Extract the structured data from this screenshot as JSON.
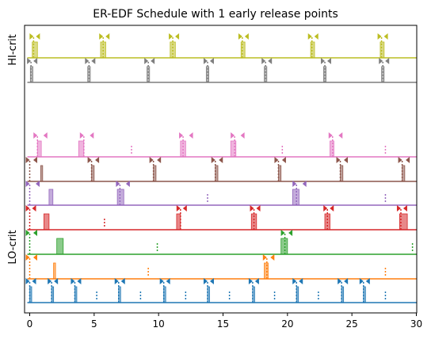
{
  "chart_data": {
    "type": "schedule-timeline",
    "title": "ER-EDF Schedule with 1 early release points",
    "xlim": [
      0,
      30
    ],
    "xticks": [
      "0",
      "5",
      "10",
      "15",
      "20",
      "25",
      "30"
    ],
    "group_labels": [
      "HI-crit",
      "LO-crit"
    ],
    "grid": false,
    "legend": "none",
    "tasks": [
      {
        "group": "HI-crit",
        "color": "#bcbd22",
        "releases": [
          0.3,
          5.7,
          11.1,
          16.5,
          21.9,
          27.3
        ],
        "jobs": [
          [
            0.2,
            0.6
          ],
          [
            5.5,
            5.9
          ],
          [
            10.9,
            11.3
          ],
          [
            16.4,
            16.7
          ],
          [
            21.8,
            22.1
          ],
          [
            27.2,
            27.5
          ]
        ]
      },
      {
        "group": "HI-crit",
        "color": "#7f7f7f",
        "releases": [
          0.1,
          4.6,
          9.2,
          13.8,
          18.3,
          22.9,
          27.4
        ],
        "jobs": [
          [
            0.05,
            0.25
          ],
          [
            4.5,
            4.7
          ],
          [
            9.1,
            9.3
          ],
          [
            13.7,
            13.9
          ],
          [
            18.2,
            18.4
          ],
          [
            22.8,
            23.0
          ],
          [
            27.3,
            27.5
          ]
        ]
      },
      {
        "group": "LO-crit",
        "color": "#e377c2",
        "releases": [
          0.6,
          4.2,
          11.9,
          15.9,
          23.5
        ],
        "unreleased": [
          7.9,
          19.6,
          27.6
        ],
        "jobs": [
          [
            0.6,
            0.9
          ],
          [
            3.8,
            4.2
          ],
          [
            11.7,
            12.1
          ],
          [
            15.6,
            16.0
          ],
          [
            23.3,
            23.6
          ]
        ]
      },
      {
        "group": "LO-crit",
        "color": "#8c564b",
        "releases": [
          0,
          4.8,
          9.6,
          14.4,
          19.3,
          24.1,
          28.9
        ],
        "jobs": [
          [
            0.85,
            1.0
          ],
          [
            4.8,
            5.0
          ],
          [
            9.6,
            9.8
          ],
          [
            14.4,
            14.6
          ],
          [
            19.3,
            19.5
          ],
          [
            24.1,
            24.3
          ],
          [
            28.9,
            29.1
          ]
        ]
      },
      {
        "group": "LO-crit",
        "color": "#9467bd",
        "releases": [
          0,
          7.0,
          20.7
        ],
        "unreleased": [
          13.8,
          27.6
        ],
        "jobs": [
          [
            1.5,
            1.8
          ],
          [
            6.8,
            7.3
          ],
          [
            20.4,
            20.9
          ]
        ]
      },
      {
        "group": "LO-crit",
        "color": "#d62728",
        "releases": [
          0,
          11.7,
          17.4,
          23.1,
          28.8
        ],
        "unreleased": [
          5.8
        ],
        "jobs": [
          [
            1.1,
            1.5
          ],
          [
            11.4,
            11.7
          ],
          [
            17.2,
            17.6
          ],
          [
            22.9,
            23.3
          ],
          [
            28.7,
            29.3
          ]
        ]
      },
      {
        "group": "LO-crit",
        "color": "#2ca02c",
        "releases": [
          0,
          19.8
        ],
        "unreleased": [
          9.9,
          29.7
        ],
        "jobs": [
          [
            2.1,
            2.6
          ],
          [
            19.5,
            20.0
          ]
        ]
      },
      {
        "group": "LO-crit",
        "color": "#ff7f0e",
        "releases": [
          0,
          18.4
        ],
        "unreleased": [
          9.2,
          27.6
        ],
        "jobs": [
          [
            1.85,
            2.0
          ],
          [
            18.2,
            18.5
          ]
        ]
      },
      {
        "group": "LO-crit",
        "color": "#1f77b4",
        "releases": [
          0,
          1.7,
          3.5,
          6.9,
          10.4,
          13.8,
          17.3,
          20.7,
          24.2,
          25.9
        ],
        "unreleased": [
          5.2,
          8.6,
          12.1,
          15.5,
          19.0,
          22.4,
          27.6
        ],
        "jobs": [
          [
            0.0,
            0.1
          ],
          [
            1.7,
            1.8
          ],
          [
            3.5,
            3.6
          ],
          [
            6.9,
            7.0
          ],
          [
            10.4,
            10.5
          ],
          [
            13.8,
            13.9
          ],
          [
            17.3,
            17.4
          ],
          [
            20.7,
            20.8
          ],
          [
            24.2,
            24.3
          ],
          [
            25.9,
            26.0
          ]
        ]
      }
    ]
  }
}
